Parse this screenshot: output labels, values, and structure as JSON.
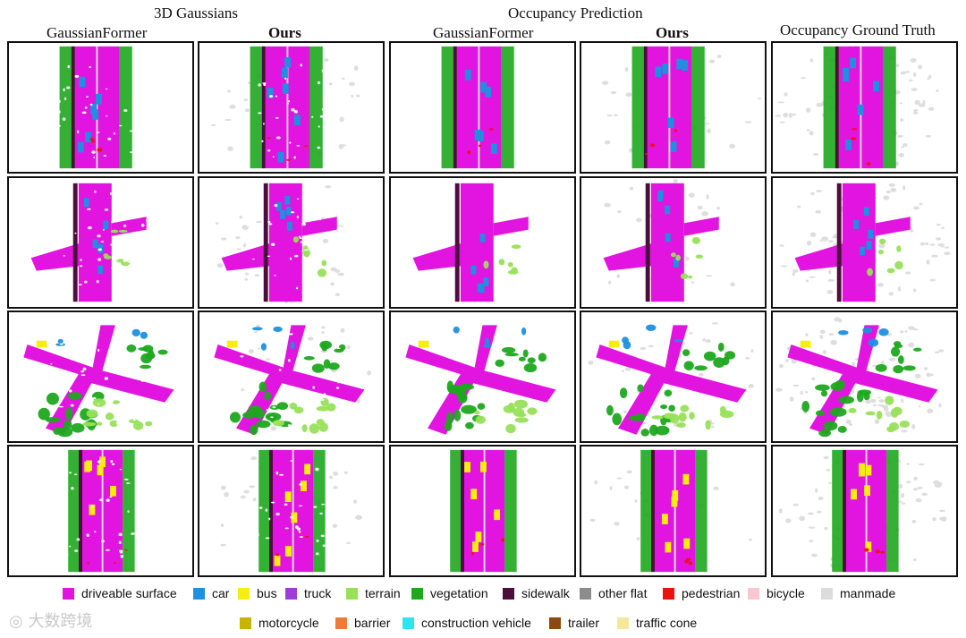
{
  "headers": {
    "group_gaussians": "3D Gaussians",
    "group_occupancy": "Occupancy Prediction",
    "col1": "GaussianFormer",
    "col2": "Ours",
    "col3": "GaussianFormer",
    "col4": "Ours",
    "col5": "Occupancy Ground Truth"
  },
  "legend": [
    {
      "label": "driveable surface",
      "color": "#e214e0"
    },
    {
      "label": "car",
      "color": "#1f8fe0"
    },
    {
      "label": "bus",
      "color": "#f7ee10"
    },
    {
      "label": "truck",
      "color": "#9b3fd8"
    },
    {
      "label": "terrain",
      "color": "#98e05a"
    },
    {
      "label": "vegetation",
      "color": "#1ea81e"
    },
    {
      "label": "sidewalk",
      "color": "#4b0f3b"
    },
    {
      "label": "other flat",
      "color": "#8c8c8c"
    },
    {
      "label": "pedestrian",
      "color": "#ee1111"
    },
    {
      "label": "bicycle",
      "color": "#fbc6cf"
    },
    {
      "label": "manmade",
      "color": "#dcdcdc"
    },
    {
      "label": "motorcycle",
      "color": "#c8b400"
    },
    {
      "label": "barrier",
      "color": "#f07a3a"
    },
    {
      "label": "construction vehicle",
      "color": "#30e4ee"
    },
    {
      "label": "trailer",
      "color": "#8a4a12"
    },
    {
      "label": "traffic cone",
      "color": "#f6e89a"
    }
  ],
  "watermark": "大数跨境"
}
